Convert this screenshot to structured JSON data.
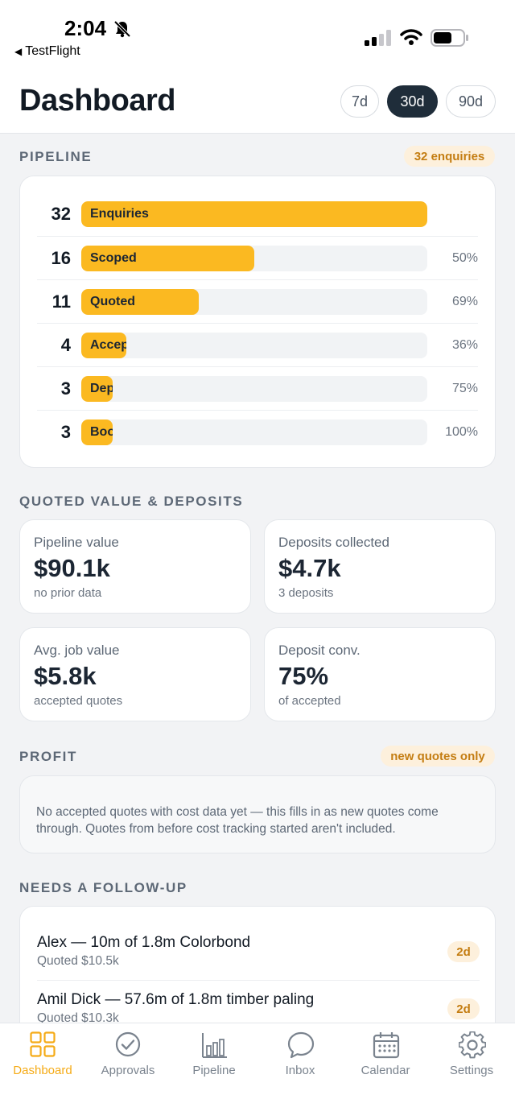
{
  "status_bar": {
    "time": "2:04",
    "back_app": "TestFlight"
  },
  "header": {
    "title": "Dashboard",
    "ranges": [
      {
        "label": "7d",
        "active": false
      },
      {
        "label": "30d",
        "active": true
      },
      {
        "label": "90d",
        "active": false
      }
    ]
  },
  "pipeline": {
    "title": "PIPELINE",
    "badge": "32 enquiries",
    "stages": [
      {
        "count": "32",
        "label": "Enquiries",
        "pct": "",
        "fill": 1.0
      },
      {
        "count": "16",
        "label": "Scoped",
        "pct": "50%",
        "fill": 0.5
      },
      {
        "count": "11",
        "label": "Quoted",
        "pct": "69%",
        "fill": 0.34
      },
      {
        "count": "4",
        "label": "Accepted",
        "pct": "36%",
        "fill": 0.13
      },
      {
        "count": "3",
        "label": "Deposit",
        "pct": "75%",
        "fill": 0.09
      },
      {
        "count": "3",
        "label": "Booked",
        "pct": "100%",
        "fill": 0.09
      }
    ]
  },
  "quoted": {
    "title": "QUOTED VALUE & DEPOSITS",
    "stats": [
      {
        "label": "Pipeline value",
        "value": "$90.1k",
        "sub": "no prior data"
      },
      {
        "label": "Deposits collected",
        "value": "$4.7k",
        "sub": "3 deposits"
      },
      {
        "label": "Avg. job value",
        "value": "$5.8k",
        "sub": "accepted quotes"
      },
      {
        "label": "Deposit conv.",
        "value": "75%",
        "sub": "of accepted"
      }
    ]
  },
  "profit": {
    "title": "PROFIT",
    "badge": "new quotes only",
    "message": "No accepted quotes with cost data yet — this fills in as new quotes come through. Quotes from before cost tracking started aren't included."
  },
  "followup": {
    "title": "NEEDS A FOLLOW-UP",
    "items": [
      {
        "name": "Alex — 10m of 1.8m Colorbond",
        "sub": "Quoted $10.5k",
        "age": "2d"
      },
      {
        "name": "Amil Dick — 57.6m of 1.8m timber paling",
        "sub": "Quoted $10.3k",
        "age": "2d"
      }
    ]
  },
  "tabs": [
    {
      "label": "Dashboard",
      "icon": "grid-icon",
      "active": true
    },
    {
      "label": "Approvals",
      "icon": "check-circle-icon",
      "active": false
    },
    {
      "label": "Pipeline",
      "icon": "bar-chart-icon",
      "active": false
    },
    {
      "label": "Inbox",
      "icon": "chat-bubble-icon",
      "active": false
    },
    {
      "label": "Calendar",
      "icon": "calendar-icon",
      "active": false
    },
    {
      "label": "Settings",
      "icon": "gear-icon",
      "active": false
    }
  ],
  "colors": {
    "accent": "#fbb921",
    "dark": "#1f2d3a",
    "badge_bg": "#fdf0dc",
    "badge_text": "#c47d12"
  }
}
